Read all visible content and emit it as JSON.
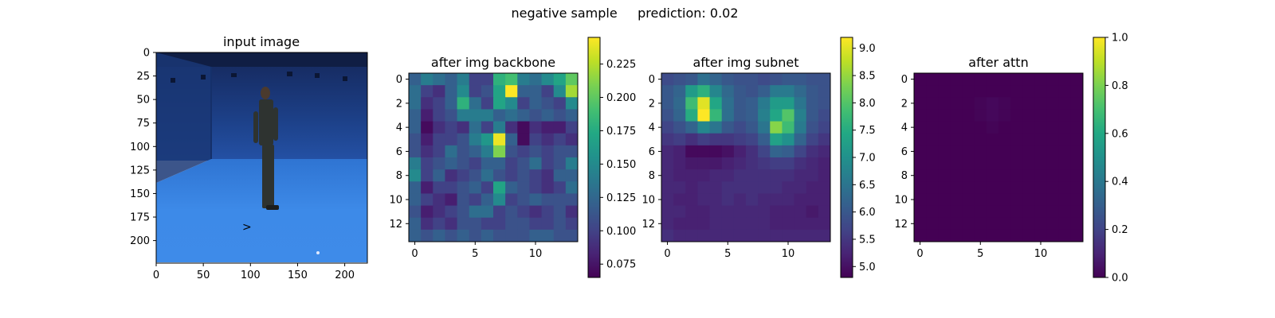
{
  "figure": {
    "suptitle": "negative sample     prediction: 0.02"
  },
  "chart_data": [
    {
      "type": "image",
      "title": "input image",
      "description_note": "photo of a person standing in a blue-walled motion capture studio",
      "xlim": [
        0,
        224
      ],
      "ylim": [
        224,
        0
      ],
      "xticks": [
        0,
        50,
        100,
        150,
        200
      ],
      "yticks": [
        0,
        25,
        50,
        75,
        100,
        125,
        150,
        175,
        200
      ],
      "colors": {
        "wall": "#1d3f8a",
        "floor": "#3b86e6",
        "person": "#2e3330"
      }
    },
    {
      "type": "heatmap",
      "title": "after img backbone",
      "xticks": [
        0,
        5,
        10
      ],
      "yticks": [
        0,
        2,
        4,
        6,
        8,
        10,
        12
      ],
      "colorbar": {
        "min": 0.065,
        "max": 0.245,
        "ticks": [
          0.075,
          0.1,
          0.125,
          0.15,
          0.175,
          0.2,
          0.225
        ],
        "tick_labels": [
          "0.075",
          "0.100",
          "0.125",
          "0.150",
          "0.175",
          "0.200",
          "0.225"
        ]
      },
      "values": [
        [
          0.12,
          0.14,
          0.13,
          0.12,
          0.14,
          0.1,
          0.1,
          0.18,
          0.19,
          0.14,
          0.13,
          0.15,
          0.17,
          0.2
        ],
        [
          0.13,
          0.1,
          0.09,
          0.12,
          0.15,
          0.1,
          0.11,
          0.17,
          0.245,
          0.12,
          0.12,
          0.1,
          0.15,
          0.22
        ],
        [
          0.13,
          0.09,
          0.1,
          0.12,
          0.18,
          0.13,
          0.1,
          0.17,
          0.15,
          0.1,
          0.12,
          0.11,
          0.1,
          0.15
        ],
        [
          0.12,
          0.08,
          0.1,
          0.11,
          0.14,
          0.14,
          0.14,
          0.12,
          0.13,
          0.12,
          0.11,
          0.12,
          0.11,
          0.12
        ],
        [
          0.12,
          0.07,
          0.09,
          0.1,
          0.09,
          0.13,
          0.1,
          0.14,
          0.09,
          0.07,
          0.09,
          0.08,
          0.08,
          0.1
        ],
        [
          0.11,
          0.08,
          0.1,
          0.1,
          0.11,
          0.14,
          0.16,
          0.24,
          0.12,
          0.07,
          0.1,
          0.09,
          0.1,
          0.09
        ],
        [
          0.11,
          0.09,
          0.1,
          0.13,
          0.11,
          0.12,
          0.14,
          0.21,
          0.11,
          0.1,
          0.11,
          0.1,
          0.11,
          0.11
        ],
        [
          0.14,
          0.1,
          0.11,
          0.12,
          0.11,
          0.1,
          0.12,
          0.12,
          0.1,
          0.11,
          0.13,
          0.1,
          0.11,
          0.14
        ],
        [
          0.15,
          0.1,
          0.12,
          0.09,
          0.1,
          0.11,
          0.13,
          0.11,
          0.1,
          0.11,
          0.1,
          0.09,
          0.12,
          0.12
        ],
        [
          0.12,
          0.08,
          0.1,
          0.1,
          0.11,
          0.12,
          0.1,
          0.17,
          0.12,
          0.11,
          0.1,
          0.09,
          0.1,
          0.13
        ],
        [
          0.12,
          0.1,
          0.09,
          0.08,
          0.11,
          0.1,
          0.12,
          0.15,
          0.1,
          0.11,
          0.12,
          0.11,
          0.11,
          0.11
        ],
        [
          0.11,
          0.08,
          0.09,
          0.1,
          0.11,
          0.13,
          0.13,
          0.1,
          0.11,
          0.1,
          0.09,
          0.1,
          0.11,
          0.09
        ],
        [
          0.12,
          0.09,
          0.1,
          0.09,
          0.11,
          0.11,
          0.1,
          0.1,
          0.11,
          0.11,
          0.1,
          0.1,
          0.11,
          0.1
        ],
        [
          0.12,
          0.11,
          0.12,
          0.11,
          0.12,
          0.11,
          0.12,
          0.11,
          0.11,
          0.11,
          0.12,
          0.12,
          0.11,
          0.11
        ]
      ]
    },
    {
      "type": "heatmap",
      "title": "after img subnet",
      "xticks": [
        0,
        5,
        10
      ],
      "yticks": [
        0,
        2,
        4,
        6,
        8,
        10,
        12
      ],
      "colorbar": {
        "min": 4.8,
        "max": 9.2,
        "ticks": [
          5.0,
          5.5,
          6.0,
          6.5,
          7.0,
          7.5,
          8.0,
          8.5,
          9.0
        ],
        "tick_labels": [
          "5.0",
          "5.5",
          "6.0",
          "6.5",
          "7.0",
          "7.5",
          "8.0",
          "8.5",
          "9.0"
        ]
      },
      "values": [
        [
          5.8,
          5.9,
          6.0,
          6.4,
          6.2,
          6.0,
          5.9,
          5.9,
          5.8,
          5.9,
          6.0,
          6.0,
          5.9,
          5.9
        ],
        [
          6.0,
          6.2,
          7.2,
          7.6,
          6.8,
          6.3,
          6.0,
          5.9,
          6.1,
          6.6,
          6.6,
          6.3,
          6.0,
          5.9
        ],
        [
          6.0,
          6.3,
          7.8,
          9.0,
          7.4,
          6.4,
          6.0,
          6.1,
          6.6,
          7.2,
          7.2,
          6.5,
          6.0,
          5.9
        ],
        [
          5.9,
          6.2,
          7.5,
          9.2,
          7.7,
          6.4,
          6.0,
          6.1,
          6.7,
          7.4,
          8.0,
          6.7,
          6.0,
          5.8
        ],
        [
          5.7,
          5.9,
          6.2,
          6.8,
          6.5,
          6.0,
          5.8,
          6.0,
          6.5,
          8.4,
          7.8,
          6.6,
          5.9,
          5.7
        ],
        [
          5.5,
          5.6,
          5.4,
          5.6,
          5.5,
          5.5,
          5.6,
          5.7,
          6.1,
          7.3,
          7.0,
          6.2,
          5.7,
          5.5
        ],
        [
          5.3,
          5.2,
          4.9,
          4.9,
          4.9,
          5.0,
          5.2,
          5.4,
          5.7,
          6.2,
          6.1,
          5.7,
          5.4,
          5.3
        ],
        [
          5.3,
          5.2,
          5.1,
          5.1,
          5.1,
          5.2,
          5.3,
          5.4,
          5.5,
          5.6,
          5.6,
          5.4,
          5.3,
          5.2
        ],
        [
          5.3,
          5.2,
          5.2,
          5.2,
          5.3,
          5.3,
          5.4,
          5.4,
          5.4,
          5.4,
          5.4,
          5.3,
          5.3,
          5.2
        ],
        [
          5.3,
          5.3,
          5.2,
          5.3,
          5.3,
          5.4,
          5.4,
          5.4,
          5.4,
          5.4,
          5.3,
          5.3,
          5.2,
          5.2
        ],
        [
          5.3,
          5.2,
          5.2,
          5.3,
          5.3,
          5.4,
          5.3,
          5.4,
          5.3,
          5.3,
          5.3,
          5.2,
          5.2,
          5.2
        ],
        [
          5.3,
          5.3,
          5.2,
          5.2,
          5.3,
          5.3,
          5.3,
          5.3,
          5.3,
          5.2,
          5.2,
          5.2,
          5.1,
          5.2
        ],
        [
          5.3,
          5.2,
          5.2,
          5.2,
          5.3,
          5.3,
          5.3,
          5.3,
          5.3,
          5.2,
          5.2,
          5.2,
          5.2,
          5.2
        ],
        [
          5.4,
          5.3,
          5.3,
          5.3,
          5.3,
          5.3,
          5.3,
          5.3,
          5.3,
          5.3,
          5.3,
          5.3,
          5.3,
          5.3
        ]
      ]
    },
    {
      "type": "heatmap",
      "title": "after attn",
      "xticks": [
        0,
        5,
        10
      ],
      "yticks": [
        0,
        2,
        4,
        6,
        8,
        10,
        12
      ],
      "colorbar": {
        "min": 0.0,
        "max": 1.0,
        "ticks": [
          0.0,
          0.2,
          0.4,
          0.6,
          0.8,
          1.0
        ],
        "tick_labels": [
          "0.0",
          "0.2",
          "0.4",
          "0.6",
          "0.8",
          "1.0"
        ]
      },
      "values": [
        [
          0.0,
          0.0,
          0.0,
          0.0,
          0.0,
          0.0,
          0.0,
          0.0,
          0.0,
          0.0,
          0.0,
          0.0,
          0.0,
          0.0
        ],
        [
          0.0,
          0.0,
          0.0,
          0.0,
          0.0,
          0.0,
          0.0,
          0.0,
          0.0,
          0.0,
          0.0,
          0.0,
          0.0,
          0.0
        ],
        [
          0.0,
          0.0,
          0.0,
          0.0,
          0.0,
          0.01,
          0.02,
          0.01,
          0.0,
          0.0,
          0.0,
          0.0,
          0.0,
          0.0
        ],
        [
          0.0,
          0.0,
          0.0,
          0.0,
          0.0,
          0.01,
          0.02,
          0.01,
          0.0,
          0.0,
          0.0,
          0.0,
          0.0,
          0.0
        ],
        [
          0.0,
          0.0,
          0.0,
          0.0,
          0.0,
          0.0,
          0.01,
          0.0,
          0.0,
          0.0,
          0.0,
          0.0,
          0.0,
          0.0
        ],
        [
          0.0,
          0.0,
          0.0,
          0.0,
          0.0,
          0.0,
          0.0,
          0.0,
          0.0,
          0.0,
          0.0,
          0.0,
          0.0,
          0.0
        ],
        [
          0.0,
          0.0,
          0.0,
          0.0,
          0.0,
          0.0,
          0.0,
          0.0,
          0.0,
          0.0,
          0.0,
          0.0,
          0.0,
          0.0
        ],
        [
          0.0,
          0.0,
          0.0,
          0.0,
          0.0,
          0.0,
          0.0,
          0.0,
          0.0,
          0.0,
          0.0,
          0.0,
          0.0,
          0.0
        ],
        [
          0.0,
          0.0,
          0.0,
          0.0,
          0.0,
          0.0,
          0.0,
          0.0,
          0.0,
          0.0,
          0.0,
          0.0,
          0.0,
          0.0
        ],
        [
          0.0,
          0.0,
          0.0,
          0.0,
          0.0,
          0.0,
          0.0,
          0.0,
          0.0,
          0.0,
          0.0,
          0.0,
          0.0,
          0.0
        ],
        [
          0.0,
          0.0,
          0.0,
          0.0,
          0.0,
          0.0,
          0.0,
          0.0,
          0.0,
          0.0,
          0.0,
          0.0,
          0.0,
          0.0
        ],
        [
          0.0,
          0.0,
          0.0,
          0.0,
          0.0,
          0.0,
          0.0,
          0.0,
          0.0,
          0.0,
          0.0,
          0.0,
          0.0,
          0.0
        ],
        [
          0.0,
          0.0,
          0.0,
          0.0,
          0.0,
          0.0,
          0.0,
          0.0,
          0.0,
          0.0,
          0.0,
          0.0,
          0.0,
          0.0
        ],
        [
          0.0,
          0.0,
          0.0,
          0.0,
          0.0,
          0.0,
          0.0,
          0.0,
          0.0,
          0.0,
          0.0,
          0.0,
          0.0,
          0.0
        ]
      ]
    }
  ]
}
